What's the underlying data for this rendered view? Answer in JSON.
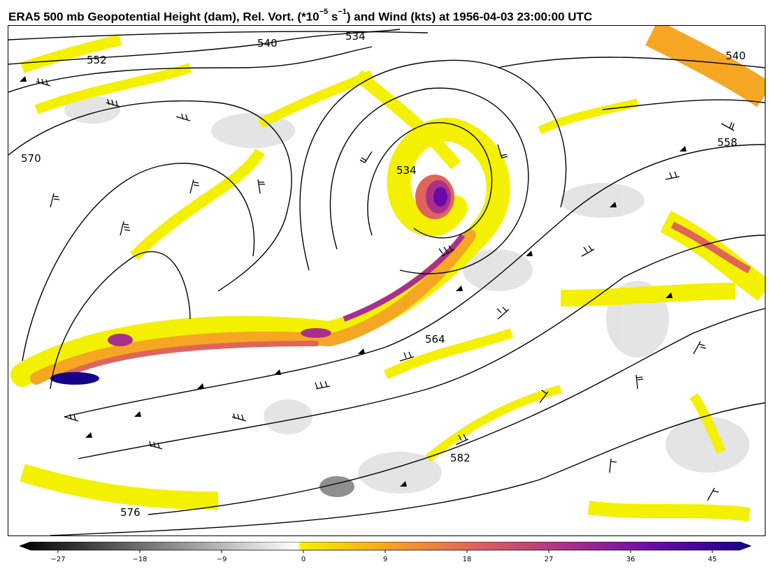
{
  "header": {
    "title_main": "ERA5 500 mb Geopotential Height (dam), Rel. Vort. (*10",
    "title_exp1": "−5",
    "title_mid": " s",
    "title_exp2": "−1",
    "title_end": ") and Wind (kts) at 1956-04-03 23:00:00 UTC"
  },
  "map": {
    "contour_labels": [
      "534",
      "540",
      "552",
      "570",
      "534",
      "540",
      "558",
      "564",
      "582",
      "576"
    ]
  },
  "colorbar": {
    "min": -30,
    "max": 48,
    "ticks": [
      "−27",
      "−18",
      "−9",
      "0",
      "9",
      "18",
      "27",
      "36",
      "45"
    ],
    "tick_values": [
      -27,
      -18,
      -9,
      0,
      9,
      18,
      27,
      36,
      45
    ],
    "colors": {
      "negative_dark": "#000000",
      "negative_light": "#ffffff",
      "pos_yellow": "#f3f000",
      "pos_orange": "#f5a623",
      "pos_salmon": "#e0645a",
      "pos_magenta": "#a8308c",
      "pos_purple": "#6a0aa8",
      "pos_navy": "#16008a"
    }
  }
}
